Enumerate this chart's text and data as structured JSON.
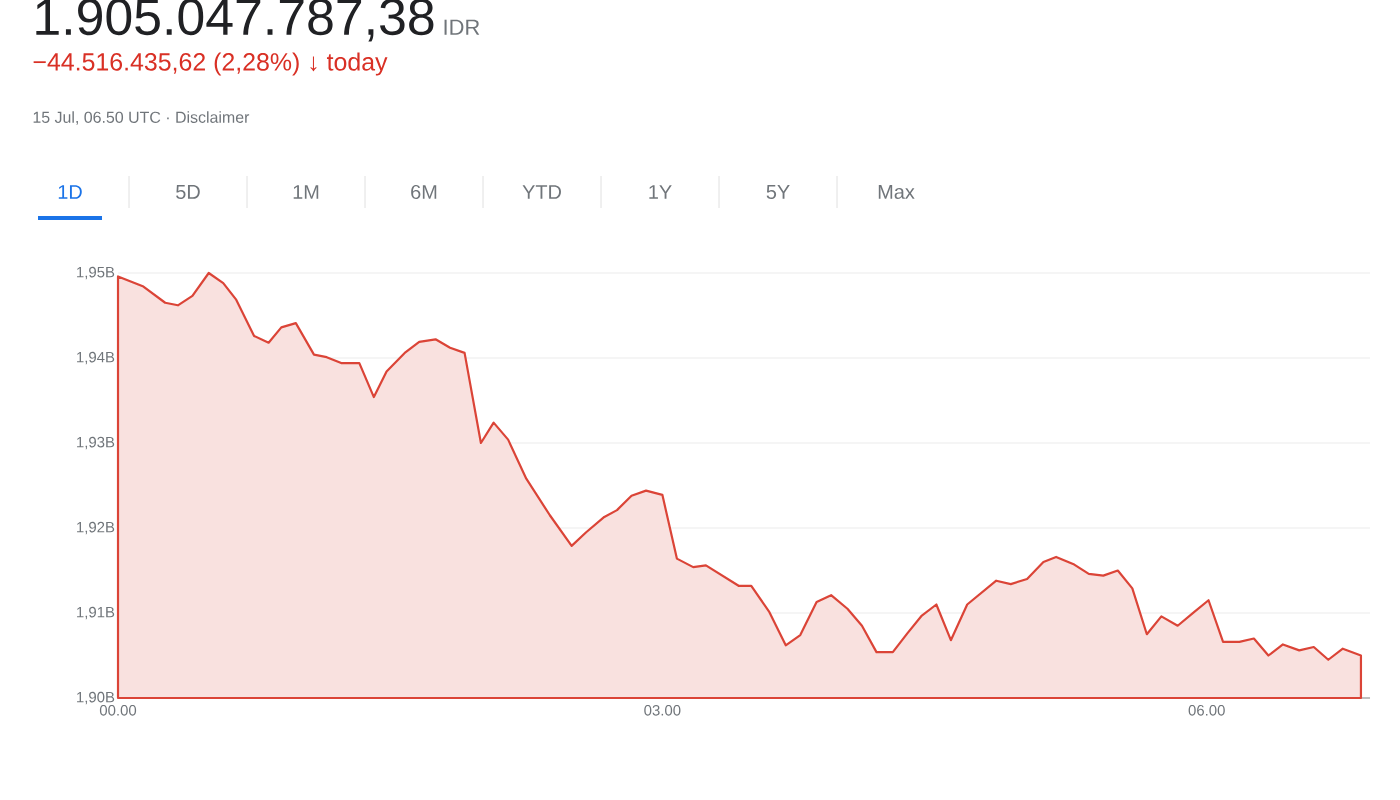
{
  "chart_data": {
    "type": "area",
    "title": "1.905.047.787,38",
    "subtitle": "−44.516.435,62 (2,28%) ↓ today",
    "annotations": [
      "IDR",
      "15 Jul, 06.50 UTC · Disclaimer",
      "1D",
      "5D",
      "1M",
      "6M",
      "YTD",
      "1Y",
      "5Y",
      "Max"
    ],
    "color": "#db4437",
    "x": [
      0,
      0.14,
      0.26,
      0.33,
      0.41,
      0.5,
      0.58,
      0.65,
      0.75,
      0.83,
      0.9,
      0.98,
      1.08,
      1.15,
      1.23,
      1.33,
      1.41,
      1.48,
      1.58,
      1.66,
      1.75,
      1.83,
      1.91,
      2.0,
      2.07,
      2.15,
      2.25,
      2.38,
      2.5,
      2.58,
      2.68,
      2.75,
      2.83,
      2.91,
      3.0,
      3.08,
      3.17,
      3.24,
      3.42,
      3.49,
      3.59,
      3.68,
      3.76,
      3.85,
      3.93,
      4.02,
      4.1,
      4.18,
      4.27,
      4.35,
      4.43,
      4.51,
      4.59,
      4.68,
      4.76,
      4.84,
      4.92,
      5.01,
      5.1,
      5.17,
      5.27,
      5.35,
      5.43,
      5.51,
      5.59,
      5.67,
      5.75,
      5.84,
      5.93,
      6.01,
      6.09,
      6.18,
      6.26,
      6.34,
      6.42,
      6.51,
      6.59,
      6.67,
      6.75,
      6.85
    ],
    "values": [
      1.9496,
      1.9484,
      1.9465,
      1.9462,
      1.9473,
      1.95,
      1.9488,
      1.9469,
      1.9426,
      1.9418,
      1.9436,
      1.9441,
      1.9404,
      1.9401,
      1.9394,
      1.9394,
      1.9354,
      1.9384,
      1.9406,
      1.9419,
      1.9422,
      1.9412,
      1.9406,
      1.93,
      1.9324,
      1.9304,
      1.9258,
      1.9215,
      1.9179,
      1.9195,
      1.9213,
      1.9221,
      1.9238,
      1.9244,
      1.9239,
      1.9164,
      1.9154,
      1.9156,
      1.9132,
      1.9132,
      1.9101,
      1.9062,
      1.9074,
      1.9113,
      1.9121,
      1.9105,
      1.9085,
      1.9054,
      1.9054,
      1.9076,
      1.9097,
      1.911,
      1.9068,
      1.911,
      1.9124,
      1.9138,
      1.9134,
      1.914,
      1.916,
      1.9166,
      1.9157,
      1.9146,
      1.9144,
      1.915,
      1.9129,
      1.9075,
      1.9096,
      1.9085,
      1.9101,
      1.9115,
      1.9066,
      1.9066,
      1.907,
      1.905,
      1.9063,
      1.9056,
      1.906,
      1.9045,
      1.9058,
      1.905
    ],
    "xlim": [
      0,
      6.9
    ],
    "xticks": [
      {
        "value": 0,
        "label": "00.00"
      },
      {
        "value": 3,
        "label": "03.00"
      },
      {
        "value": 6,
        "label": "06.00"
      }
    ],
    "ylim": [
      1.9,
      1.95
    ],
    "yticks": [
      {
        "value": 1.9,
        "label": "1,90B"
      },
      {
        "value": 1.91,
        "label": "1,91B"
      },
      {
        "value": 1.92,
        "label": "1,92B"
      },
      {
        "value": 1.93,
        "label": "1,93B"
      },
      {
        "value": 1.94,
        "label": "1,94B"
      },
      {
        "value": 1.95,
        "label": "1,95B"
      }
    ],
    "grid": "y"
  }
}
